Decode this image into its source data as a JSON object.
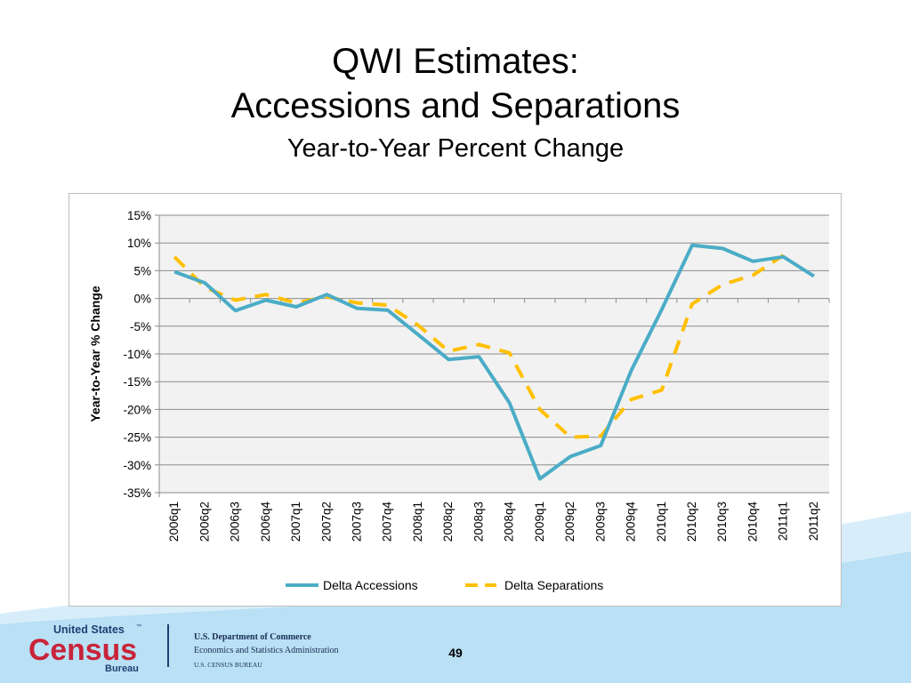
{
  "slide": {
    "title_line1": "QWI Estimates:",
    "title_line2": "Accessions and Separations",
    "subtitle": "Year-to-Year Percent Change",
    "page_number": "49"
  },
  "footer": {
    "logo_line1": "United States",
    "logo_tm": "™",
    "logo_line2": "Census",
    "logo_line3": "Bureau",
    "agency_line1": "U.S. Department of Commerce",
    "agency_line2": "Economics and Statistics Administration",
    "agency_line3": "U.S. CENSUS BUREAU",
    "colors": {
      "band": "#b9e0f4",
      "band_light": "#d7eefa",
      "logo_red": "#c8243a",
      "logo_navy": "#1f3f73"
    }
  },
  "chart_data": {
    "type": "line",
    "title": "",
    "xlabel": "",
    "ylabel": "Year-to-Year % Change",
    "ylim": [
      -35,
      15
    ],
    "yticks": [
      15,
      10,
      5,
      0,
      -5,
      -10,
      -15,
      -20,
      -25,
      -30,
      -35
    ],
    "ytick_labels": [
      "15%",
      "10%",
      "5%",
      "0%",
      "-5%",
      "-10%",
      "-15%",
      "-20%",
      "-25%",
      "-30%",
      "-35%"
    ],
    "grid": true,
    "legend_position": "bottom",
    "categories": [
      "2006q1",
      "2006q2",
      "2006q3",
      "2006q4",
      "2007q1",
      "2007q2",
      "2007q3",
      "2007q4",
      "2008q1",
      "2008q2",
      "2008q3",
      "2008q4",
      "2009q1",
      "2009q2",
      "2009q3",
      "2009q4",
      "2010q1",
      "2010q2",
      "2010q3",
      "2010q4",
      "2011q1",
      "2011q2"
    ],
    "series": [
      {
        "name": "Delta Accessions",
        "color": "#4bacc6",
        "style": "solid",
        "values": [
          4.8,
          2.8,
          -2.2,
          -0.3,
          -1.5,
          0.7,
          -1.8,
          -2.1,
          -6.5,
          -11.0,
          -10.5,
          -18.8,
          -32.5,
          -28.5,
          -26.5,
          -13.0,
          -2.0,
          9.6,
          9.0,
          6.7,
          7.5,
          4.0
        ]
      },
      {
        "name": "Delta Separations",
        "color": "#ffc000",
        "style": "dashed",
        "values": [
          7.5,
          2.0,
          -0.3,
          0.7,
          -0.8,
          0.3,
          -0.8,
          -1.2,
          -4.8,
          -9.5,
          -8.3,
          -9.8,
          -20.0,
          -25.0,
          -24.8,
          -18.2,
          -16.5,
          -1.0,
          2.5,
          4.2,
          7.8,
          null
        ]
      }
    ]
  }
}
